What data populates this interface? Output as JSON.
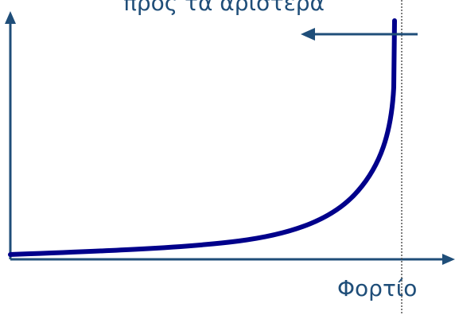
{
  "diagram": {
    "top_label": "προς τα αριστερά",
    "x_axis_label": "Φορτίο",
    "colors": {
      "axis": "#1f4e79",
      "curve": "#00008b",
      "arrow": "#1f4e79",
      "asymptote": "#555555",
      "text": "#1f4e79"
    }
  }
}
